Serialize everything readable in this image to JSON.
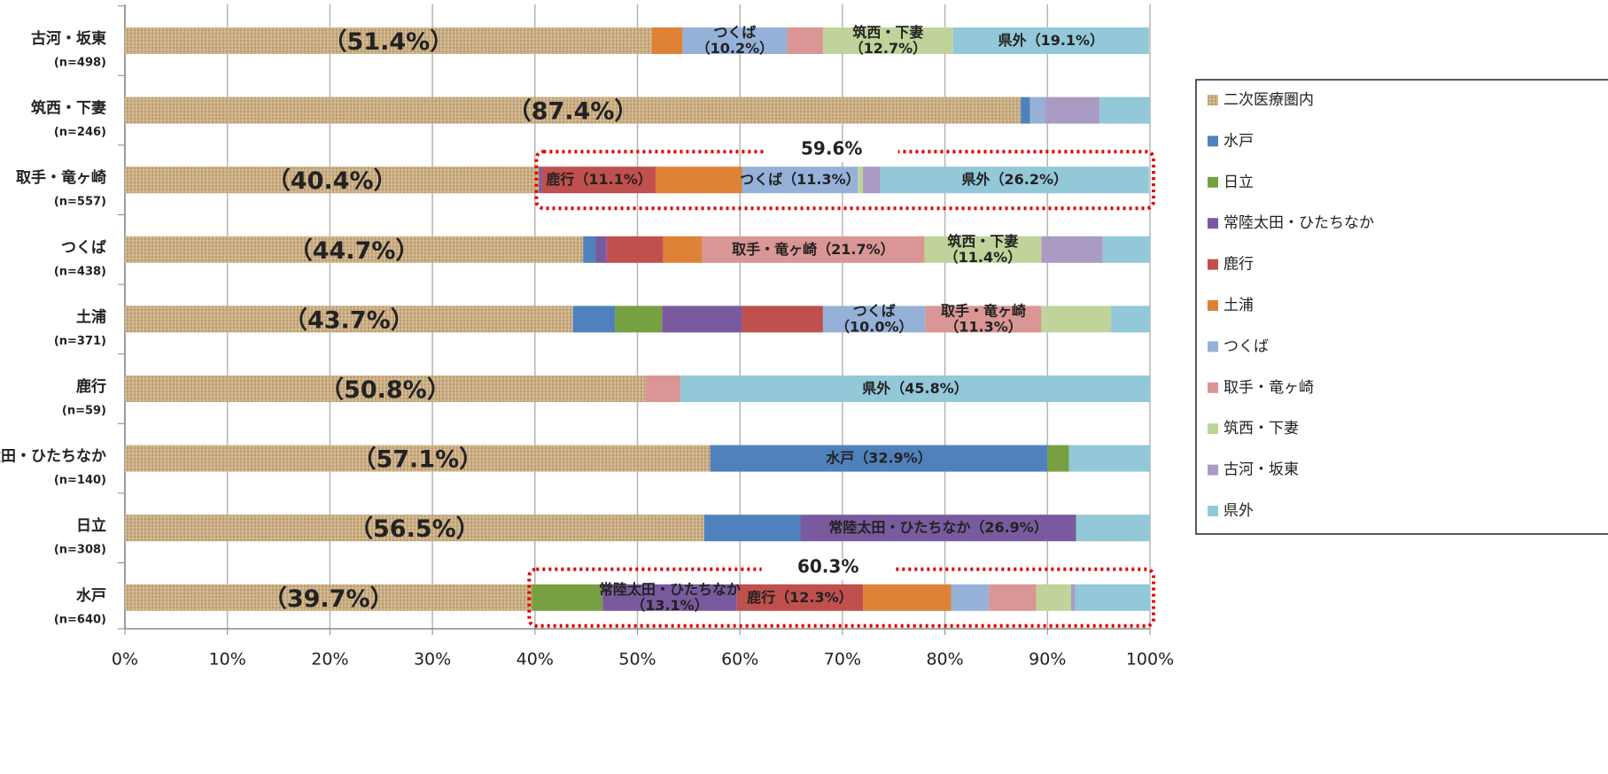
{
  "chart_data": {
    "type": "stacked_bar_horizontal",
    "categories": [
      "古河・坂東",
      "筑西・下妻",
      "取手・竜ヶ崎",
      "つくば",
      "土浦",
      "鹿行",
      "常陸太田・ひたちなか",
      "日立",
      "水戸"
    ],
    "n_labels": [
      "(n=498)",
      "(n=246)",
      "(n=557)",
      "(n=438)",
      "(n=371)",
      "(n=59)",
      "(n=140)",
      "(n=308)",
      "(n=640)"
    ],
    "series": [
      {
        "name": "二次医療圏内",
        "color": "#c9ab7e",
        "pattern": true,
        "values": [
          51.4,
          87.4,
          40.4,
          44.7,
          43.7,
          50.8,
          57.1,
          56.5,
          39.7
        ],
        "value_labels": [
          "（51.4%）",
          "（87.4%）",
          "（40.4%）",
          "（44.7%）",
          "（43.7%）",
          "（50.8%）",
          "（57.1%）",
          "（56.5%）",
          "（39.7%）"
        ]
      },
      {
        "name": "水戸",
        "color": "#4f81bd",
        "values": [
          null,
          0.9,
          null,
          1.2,
          4.1,
          null,
          32.9,
          9.4,
          null
        ],
        "value_labels": [
          null,
          null,
          null,
          null,
          null,
          null,
          "水戸（32.9%）",
          null,
          null
        ]
      },
      {
        "name": "日立",
        "color": "#77a043",
        "values": [
          null,
          null,
          null,
          null,
          4.6,
          null,
          2.1,
          null,
          6.9
        ],
        "value_labels": [
          null,
          null,
          null,
          null,
          null,
          null,
          null,
          null,
          null
        ]
      },
      {
        "name": "常陸太田・ひたちなか",
        "color": "#7a5a9e",
        "values": [
          null,
          null,
          0.3,
          1.1,
          7.8,
          null,
          null,
          26.9,
          13.1
        ],
        "value_labels": [
          null,
          null,
          null,
          null,
          null,
          null,
          null,
          "常陸太田・ひたちなか（26.9%）",
          "常陸太田・ひたちなか\n（13.1%）"
        ]
      },
      {
        "name": "鹿行",
        "color": "#c0504d",
        "values": [
          null,
          null,
          11.1,
          5.5,
          7.9,
          null,
          null,
          null,
          12.3
        ],
        "value_labels": [
          null,
          null,
          "鹿行（11.1%）",
          null,
          null,
          null,
          null,
          null,
          "鹿行（12.3%）"
        ]
      },
      {
        "name": "土浦",
        "color": "#dd8236",
        "values": [
          3.0,
          null,
          8.4,
          3.8,
          null,
          null,
          null,
          null,
          8.6
        ],
        "value_labels": [
          null,
          null,
          null,
          null,
          null,
          null,
          null,
          null,
          null
        ]
      },
      {
        "name": "つくば",
        "color": "#95b1d8",
        "values": [
          10.2,
          1.5,
          11.3,
          null,
          10.0,
          null,
          null,
          null,
          3.7
        ],
        "value_labels": [
          "つくば\n（10.2%）",
          null,
          "つくば（11.3%）",
          null,
          "つくば\n（10.0%）",
          null,
          null,
          null,
          null
        ]
      },
      {
        "name": "取手・竜ヶ崎",
        "color": "#d99694",
        "values": [
          3.5,
          null,
          null,
          21.7,
          11.3,
          3.4,
          null,
          null,
          4.6
        ],
        "value_labels": [
          null,
          null,
          null,
          "取手・竜ヶ崎（21.7%）",
          "取手・竜ヶ崎\n（11.3%）",
          null,
          null,
          null,
          null
        ]
      },
      {
        "name": "筑西・下妻",
        "color": "#bfd39a",
        "values": [
          12.7,
          null,
          0.5,
          11.4,
          6.8,
          null,
          null,
          null,
          3.4
        ],
        "value_labels": [
          "筑西・下妻\n（12.7%）",
          null,
          null,
          "筑西・下妻\n（11.4%）",
          null,
          null,
          null,
          null,
          null
        ]
      },
      {
        "name": "古河・坂東",
        "color": "#aa9bc4",
        "values": [
          null,
          5.3,
          1.7,
          6.0,
          null,
          null,
          null,
          null,
          0.4
        ],
        "value_labels": [
          null,
          null,
          null,
          null,
          null,
          null,
          null,
          null,
          null
        ]
      },
      {
        "name": "県外",
        "color": "#92c8d8",
        "values": [
          19.1,
          4.9,
          26.2,
          4.6,
          3.8,
          45.8,
          7.9,
          7.2,
          7.3
        ],
        "value_labels": [
          "県外（19.1%）",
          null,
          "県外（26.2%）",
          null,
          null,
          "県外（45.8%）",
          null,
          null,
          null
        ]
      }
    ],
    "xlim": [
      0,
      100
    ],
    "xticks": [
      {
        "value": 0,
        "label": "0%"
      },
      {
        "value": 10,
        "label": "10%"
      },
      {
        "value": 20,
        "label": "20%"
      },
      {
        "value": 30,
        "label": "30%"
      },
      {
        "value": 40,
        "label": "40%"
      },
      {
        "value": 50,
        "label": "50%"
      },
      {
        "value": 60,
        "label": "60%"
      },
      {
        "value": 70,
        "label": "70%"
      },
      {
        "value": 80,
        "label": "80%"
      },
      {
        "value": 90,
        "label": "90%"
      },
      {
        "value": 100,
        "label": "100%"
      }
    ],
    "grid": true,
    "legend": "right",
    "annotations": [
      {
        "text": "59.6%",
        "category": "取手・竜ヶ崎"
      },
      {
        "text": "60.3%",
        "category": "水戸"
      }
    ]
  }
}
